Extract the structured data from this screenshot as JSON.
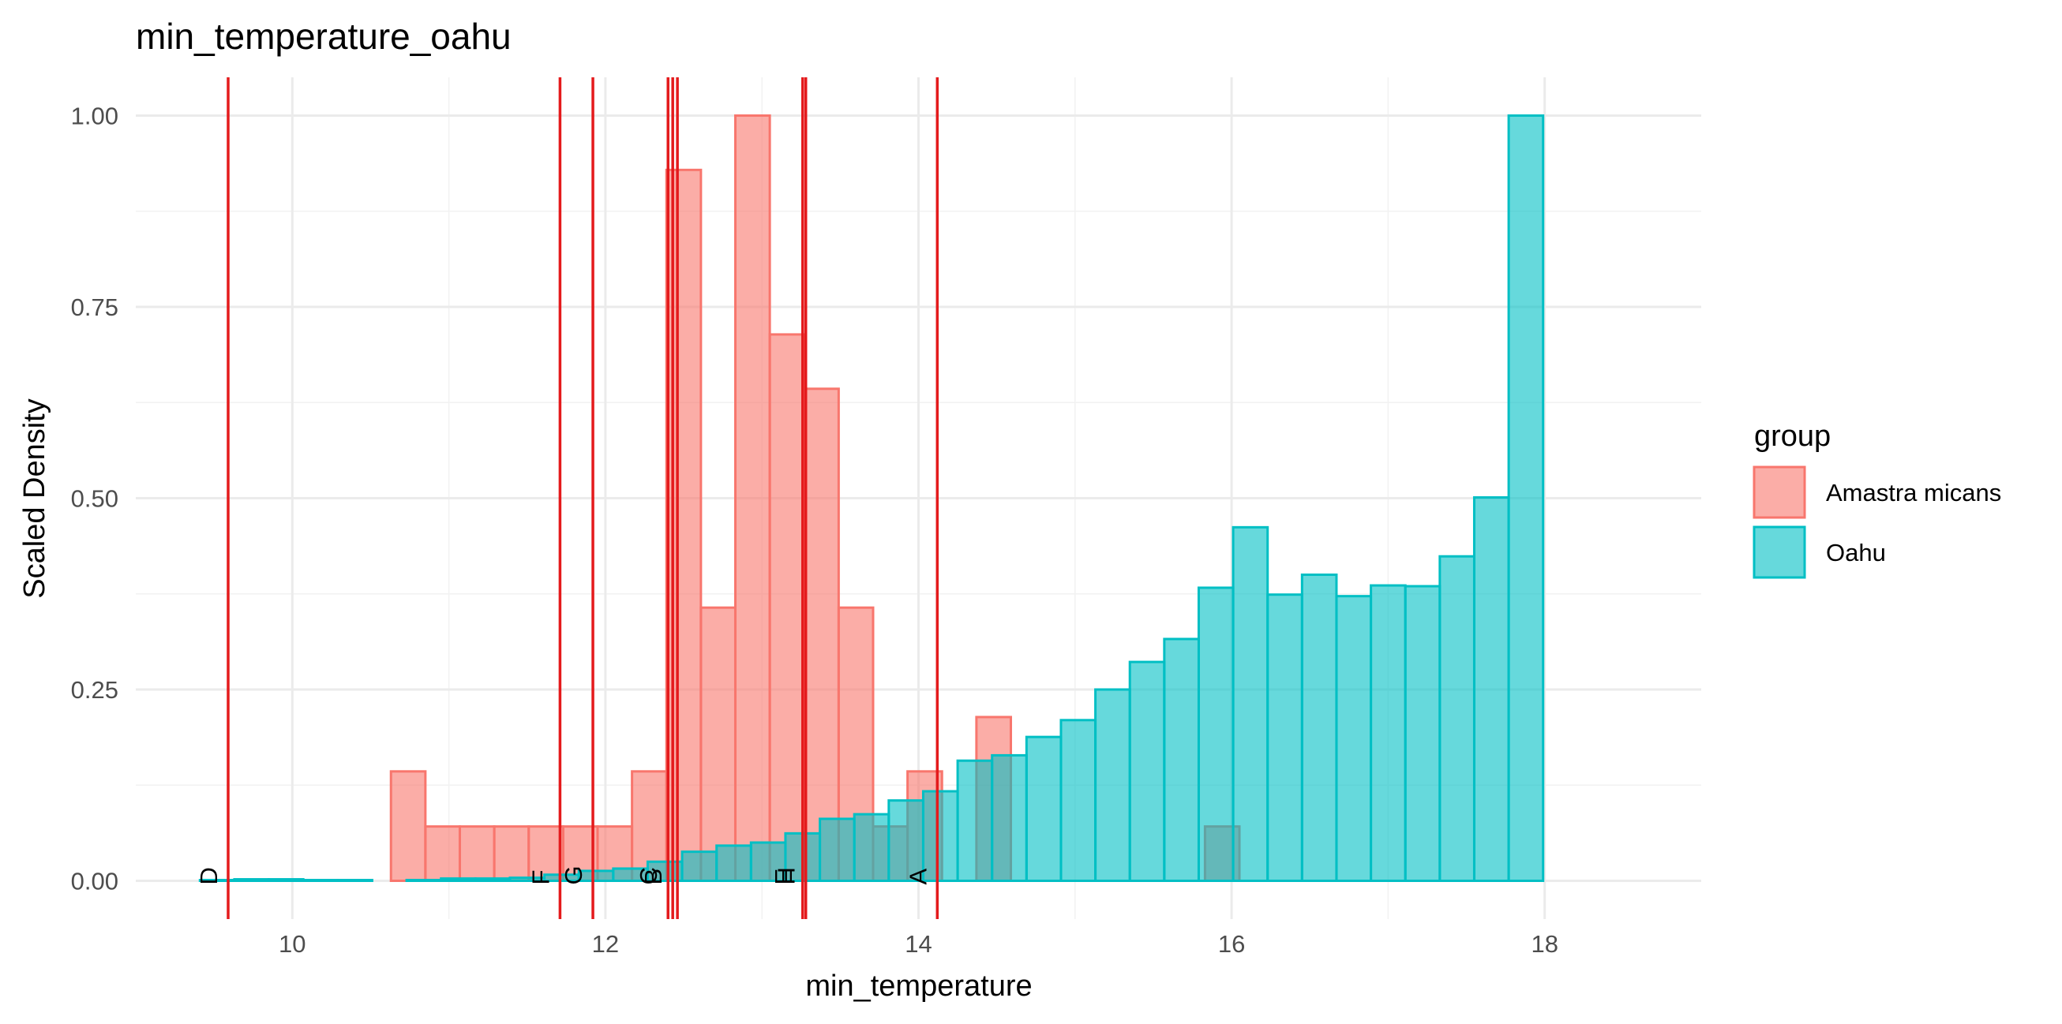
{
  "chart_data": {
    "type": "bar",
    "title": "min_temperature_oahu",
    "xlabel": "min_temperature",
    "ylabel": "Scaled Density",
    "xlim": [
      9.0,
      19.0
    ],
    "ylim": [
      -0.05,
      1.05
    ],
    "xticks": [
      10,
      12,
      14,
      16,
      18
    ],
    "yticks": [
      0.0,
      0.25,
      0.5,
      0.75,
      1.0
    ],
    "ytick_labels": [
      "0.00",
      "0.25",
      "0.50",
      "0.75",
      "1.00"
    ],
    "grid": true,
    "legend": {
      "title": "group",
      "position": "right",
      "entries": [
        {
          "label": "Amastra micans",
          "fill": "#F8766D"
        },
        {
          "label": "Oahu",
          "fill": "#00BFC4"
        }
      ]
    },
    "bin_width": 0.22,
    "series": [
      {
        "name": "Amastra micans",
        "fill": "#F8766D",
        "stroke": "#F8766D",
        "bins": [
          {
            "x": 10.74,
            "y": 0.143
          },
          {
            "x": 10.96,
            "y": 0.071
          },
          {
            "x": 11.18,
            "y": 0.071
          },
          {
            "x": 11.4,
            "y": 0.071
          },
          {
            "x": 11.62,
            "y": 0.071
          },
          {
            "x": 11.84,
            "y": 0.071
          },
          {
            "x": 12.06,
            "y": 0.071
          },
          {
            "x": 12.28,
            "y": 0.143
          },
          {
            "x": 12.5,
            "y": 0.929
          },
          {
            "x": 12.72,
            "y": 0.357
          },
          {
            "x": 12.94,
            "y": 1.0
          },
          {
            "x": 13.16,
            "y": 0.714
          },
          {
            "x": 13.38,
            "y": 0.643
          },
          {
            "x": 13.6,
            "y": 0.357
          },
          {
            "x": 13.82,
            "y": 0.071
          },
          {
            "x": 14.04,
            "y": 0.143
          },
          {
            "x": 14.48,
            "y": 0.214
          },
          {
            "x": 15.94,
            "y": 0.071
          }
        ]
      },
      {
        "name": "Oahu",
        "fill": "#00BFC4",
        "stroke": "#00BFC4",
        "bins": [
          {
            "x": 9.52,
            "y": 0.001
          },
          {
            "x": 9.74,
            "y": 0.002
          },
          {
            "x": 9.96,
            "y": 0.002
          },
          {
            "x": 10.18,
            "y": 0.001
          },
          {
            "x": 10.4,
            "y": 0.001
          },
          {
            "x": 10.62,
            "y": 0.0
          },
          {
            "x": 10.84,
            "y": 0.001
          },
          {
            "x": 11.06,
            "y": 0.003
          },
          {
            "x": 11.28,
            "y": 0.003
          },
          {
            "x": 11.5,
            "y": 0.004
          },
          {
            "x": 11.72,
            "y": 0.008
          },
          {
            "x": 11.94,
            "y": 0.013
          },
          {
            "x": 12.16,
            "y": 0.016
          },
          {
            "x": 12.38,
            "y": 0.025
          },
          {
            "x": 12.6,
            "y": 0.038
          },
          {
            "x": 12.82,
            "y": 0.046
          },
          {
            "x": 13.04,
            "y": 0.05
          },
          {
            "x": 13.26,
            "y": 0.062
          },
          {
            "x": 13.48,
            "y": 0.081
          },
          {
            "x": 13.7,
            "y": 0.087
          },
          {
            "x": 13.92,
            "y": 0.105
          },
          {
            "x": 14.14,
            "y": 0.117
          },
          {
            "x": 14.36,
            "y": 0.157
          },
          {
            "x": 14.58,
            "y": 0.164
          },
          {
            "x": 14.8,
            "y": 0.188
          },
          {
            "x": 15.02,
            "y": 0.21
          },
          {
            "x": 15.24,
            "y": 0.25
          },
          {
            "x": 15.46,
            "y": 0.286
          },
          {
            "x": 15.68,
            "y": 0.316
          },
          {
            "x": 15.9,
            "y": 0.383
          },
          {
            "x": 16.12,
            "y": 0.462
          },
          {
            "x": 16.34,
            "y": 0.374
          },
          {
            "x": 16.56,
            "y": 0.4
          },
          {
            "x": 16.78,
            "y": 0.372
          },
          {
            "x": 17.0,
            "y": 0.386
          },
          {
            "x": 17.22,
            "y": 0.385
          },
          {
            "x": 17.44,
            "y": 0.424
          },
          {
            "x": 17.66,
            "y": 0.501
          },
          {
            "x": 17.88,
            "y": 1.0
          }
        ]
      }
    ],
    "vlines": {
      "color": "#E41A1C",
      "lines": [
        {
          "x": 9.59,
          "label": "D"
        },
        {
          "x": 11.71,
          "label": "F"
        },
        {
          "x": 11.92,
          "label": "G"
        },
        {
          "x": 12.4,
          "label": "C"
        },
        {
          "x": 12.43,
          "label": "B"
        },
        {
          "x": 12.46,
          "label": ""
        },
        {
          "x": 13.26,
          "label": "E"
        },
        {
          "x": 13.28,
          "label": "H"
        },
        {
          "x": 14.12,
          "label": "A"
        }
      ]
    }
  }
}
